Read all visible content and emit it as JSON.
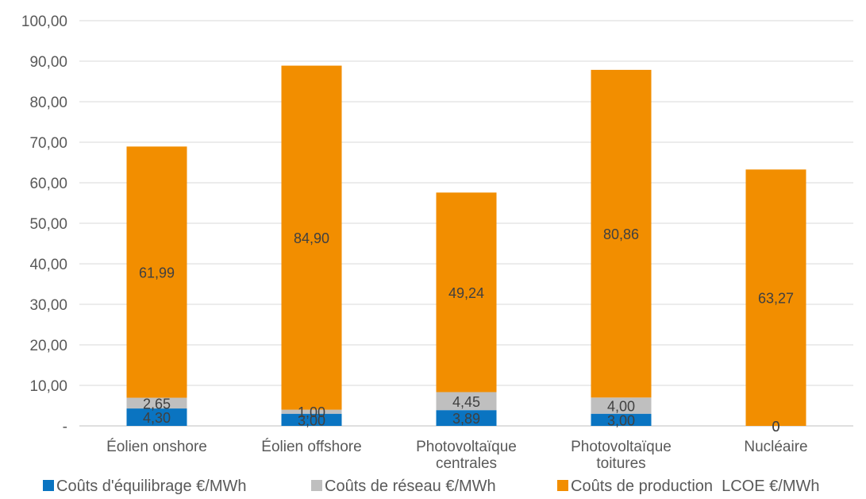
{
  "chart_data": {
    "type": "bar",
    "stacked": true,
    "title": "",
    "xlabel": "",
    "ylabel": "",
    "ylim": [
      0,
      100
    ],
    "y_ticks": [
      {
        "value": 0,
        "label": "-"
      },
      {
        "value": 10,
        "label": "10,00"
      },
      {
        "value": 20,
        "label": "20,00"
      },
      {
        "value": 30,
        "label": "30,00"
      },
      {
        "value": 40,
        "label": "40,00"
      },
      {
        "value": 50,
        "label": "50,00"
      },
      {
        "value": 60,
        "label": "60,00"
      },
      {
        "value": 70,
        "label": "70,00"
      },
      {
        "value": 80,
        "label": "80,00"
      },
      {
        "value": 90,
        "label": "90,00"
      },
      {
        "value": 100,
        "label": "100,00"
      }
    ],
    "grid": true,
    "legend_position": "bottom",
    "categories": [
      [
        "Éolien onshore"
      ],
      [
        "Éolien offshore"
      ],
      [
        "Photovoltaïque",
        "centrales"
      ],
      [
        "Photovoltaïque",
        "toitures"
      ],
      [
        "Nucléaire"
      ]
    ],
    "series": [
      {
        "name": "Coûts d'équilibrage €/MWh",
        "color": "#0a74c1",
        "values": [
          4.3,
          3.0,
          3.89,
          3.0,
          0
        ],
        "labels": [
          "4,30",
          "3,00",
          "3,89",
          "3,00",
          "0"
        ]
      },
      {
        "name": "Coûts de réseau €/MWh",
        "color": "#bfbfbf",
        "values": [
          2.65,
          1.0,
          4.45,
          4.0,
          0
        ],
        "labels": [
          "2,65",
          "1,00",
          "4,45",
          "4,00",
          "0"
        ]
      },
      {
        "name": "Coûts de production  LCOE €/MWh",
        "color": "#f28e00",
        "values": [
          61.99,
          84.9,
          49.24,
          80.86,
          63.27
        ],
        "labels": [
          "61,99",
          "84,90",
          "49,24",
          "80,86",
          "63,27"
        ]
      }
    ]
  }
}
